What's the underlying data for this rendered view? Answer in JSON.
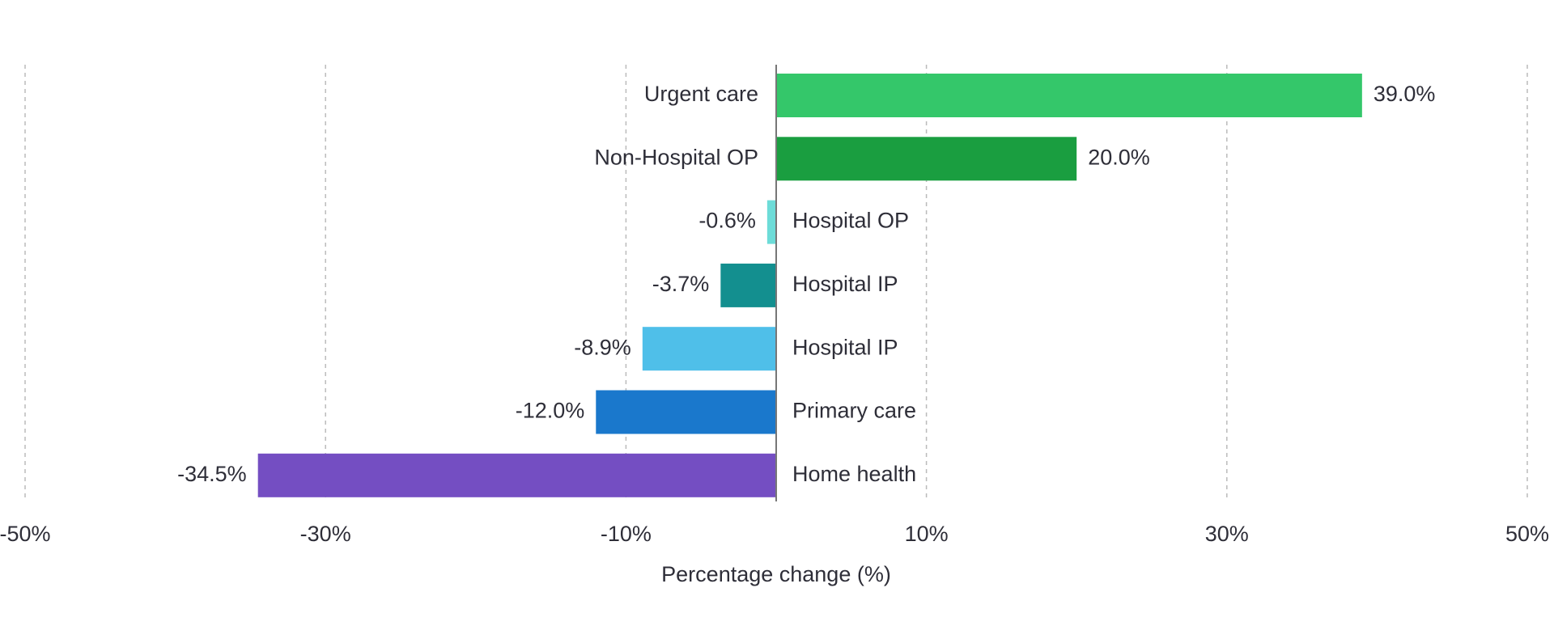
{
  "chart_data": {
    "type": "bar",
    "orientation": "horizontal",
    "categories": [
      "Urgent care",
      "Non-Hospital OP",
      "Hospital OP",
      "Hospital IP",
      "Hospital IP",
      "Primary care",
      "Home health"
    ],
    "values": [
      39.0,
      20.0,
      -0.6,
      -3.7,
      -8.9,
      -12.0,
      -34.5
    ],
    "value_labels": [
      "39.0%",
      "20.0%",
      "-0.6%",
      "-3.7%",
      "-8.9%",
      "-12.0%",
      "-34.5%"
    ],
    "colors": [
      "#34c76a",
      "#1a9e40",
      "#6ddcd8",
      "#138f8f",
      "#4fbfe9",
      "#1a78cc",
      "#744ec2"
    ],
    "xlabel": "Percentage change (%)",
    "xlim": [
      -50,
      50
    ],
    "xticks": [
      {
        "value": -50,
        "label": "-50%"
      },
      {
        "value": -30,
        "label": "-30%"
      },
      {
        "value": -10,
        "label": "-10%"
      },
      {
        "value": 10,
        "label": "10%"
      },
      {
        "value": 30,
        "label": "30%"
      },
      {
        "value": 50,
        "label": "50%"
      }
    ],
    "grid": true
  }
}
